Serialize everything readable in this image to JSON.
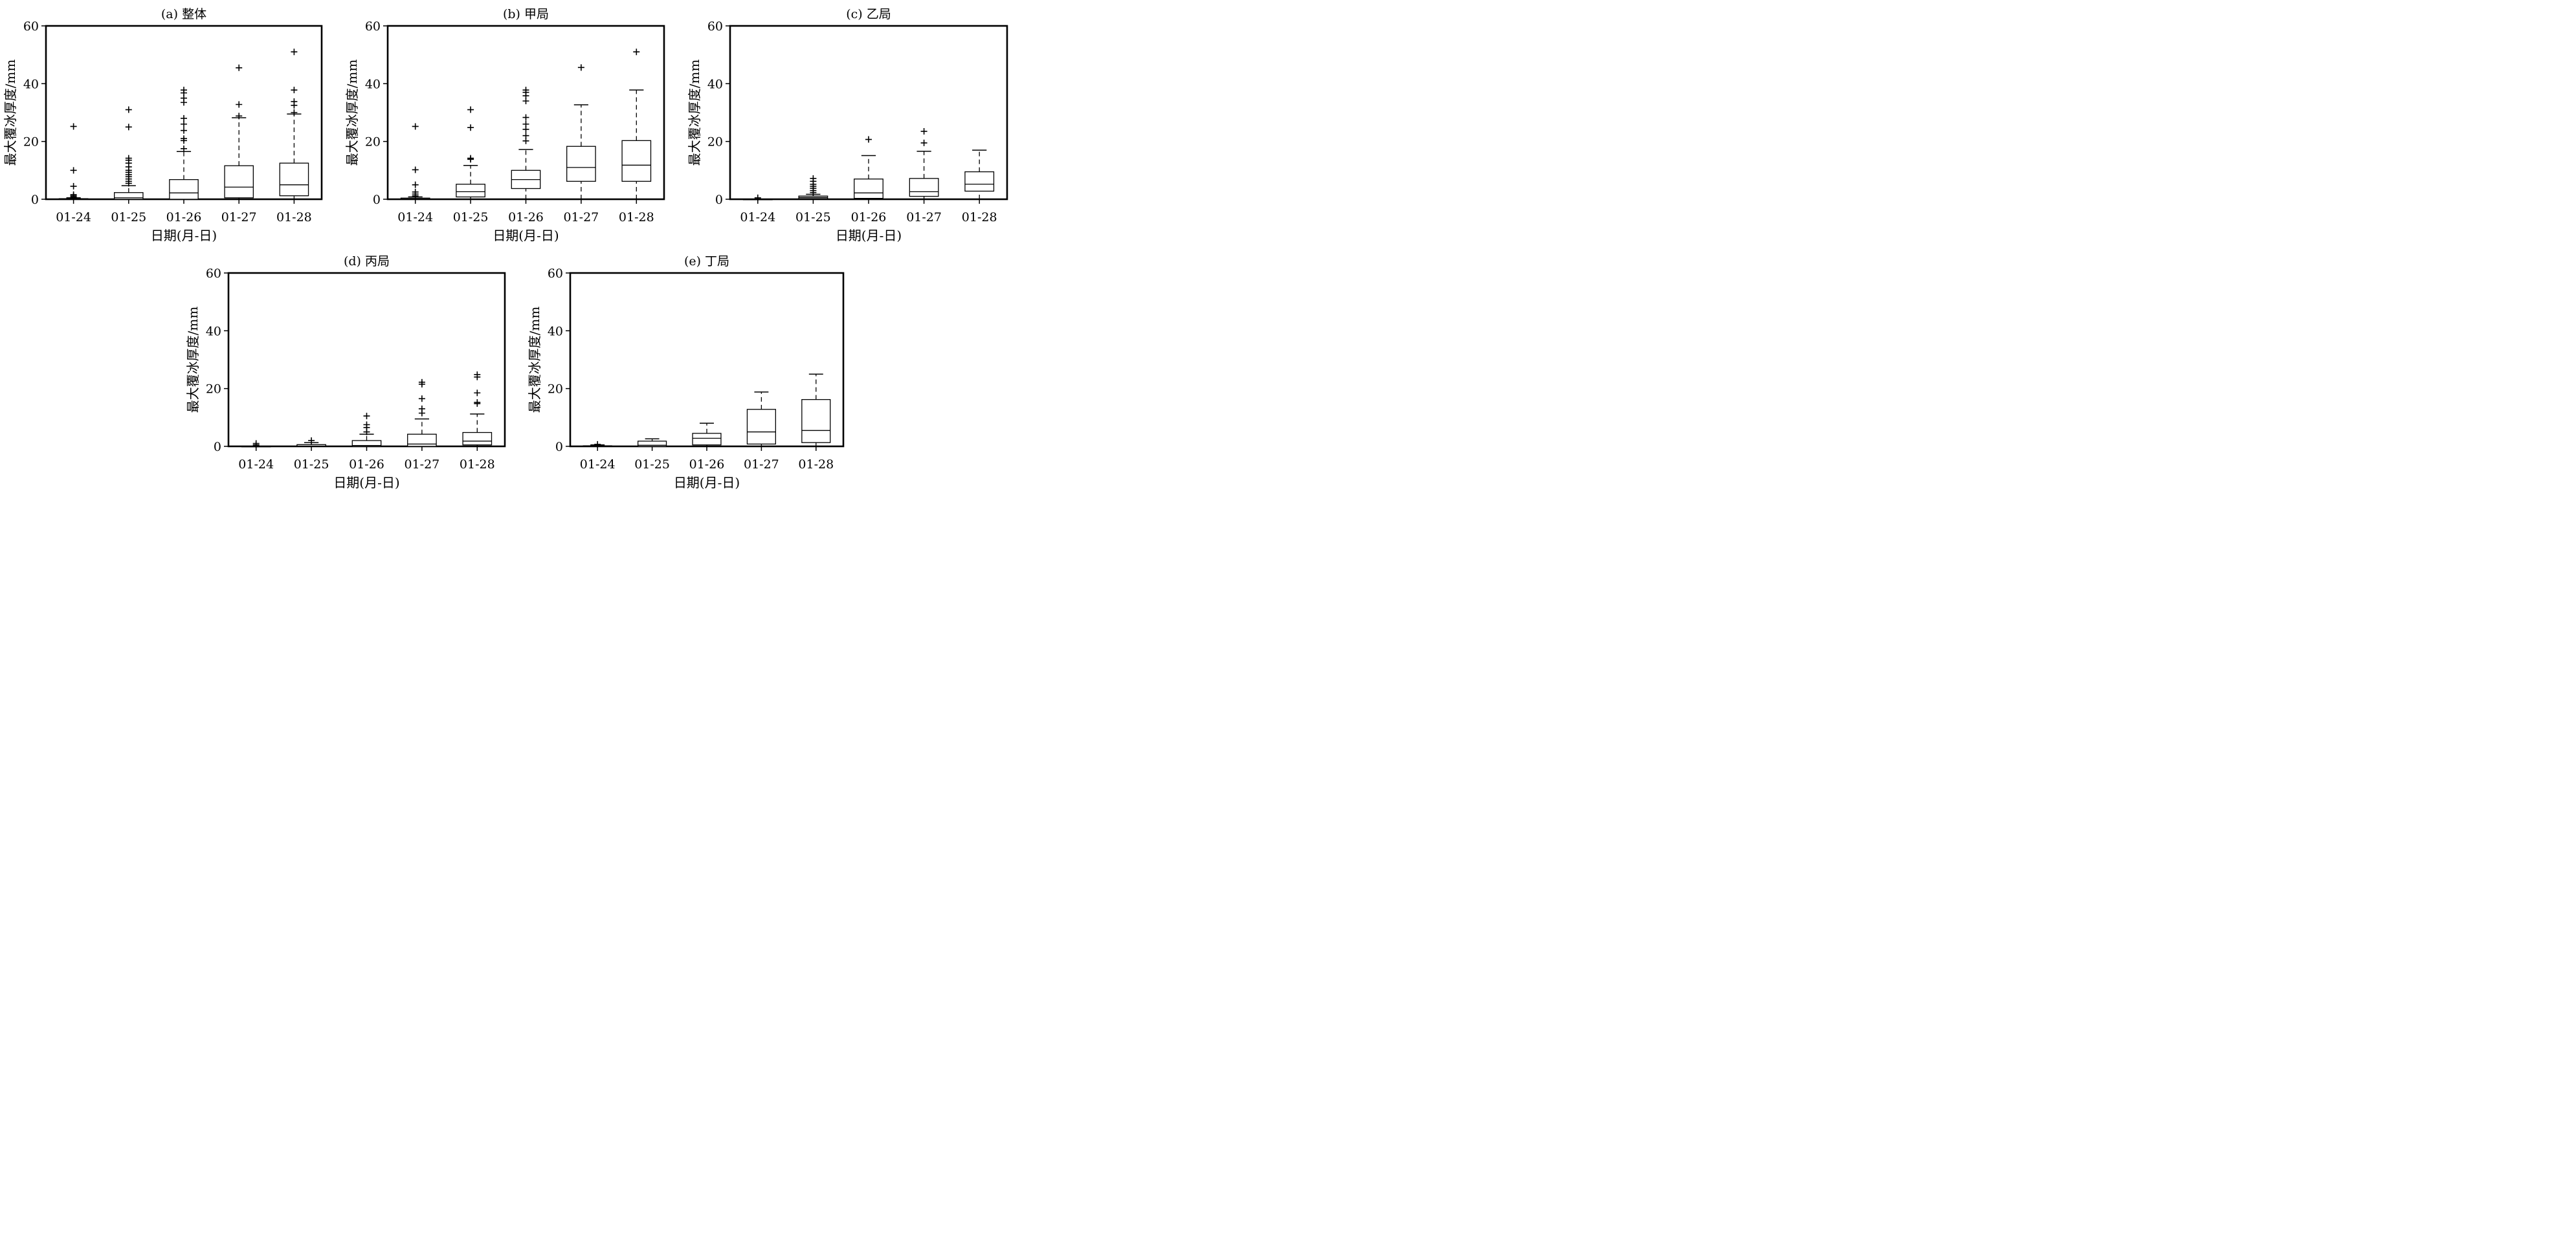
{
  "chart_data": [
    {
      "id": "a",
      "type": "box",
      "title": "(a) 整体",
      "xlabel": "日期(月-日)",
      "ylabel": "最大覆冰厚度/mm",
      "ylim": [
        0,
        60
      ],
      "yticks": [
        0,
        20,
        40,
        60
      ],
      "categories": [
        "01-24",
        "01-25",
        "01-26",
        "01-27",
        "01-28"
      ],
      "boxes": [
        {
          "whisker_low": 0,
          "q1": 0,
          "median": 0,
          "q3": 0.2,
          "whisker_high": 0.5,
          "outliers": [
            0.8,
            1.2,
            1.6,
            4.5,
            10,
            25.2
          ]
        },
        {
          "whisker_low": 0,
          "q1": 0,
          "median": 0.5,
          "q3": 2.3,
          "whisker_high": 4.7,
          "outliers": [
            5.5,
            6.2,
            7,
            7.8,
            8.5,
            9.3,
            10,
            11.2,
            12.5,
            13.5,
            14.2,
            25,
            31
          ]
        },
        {
          "whisker_low": 0,
          "q1": 0,
          "median": 2.2,
          "q3": 6.8,
          "whisker_high": 16.5,
          "outliers": [
            17.5,
            20.3,
            21,
            23.8,
            26,
            28,
            33.5,
            35,
            36.8,
            37.8
          ]
        },
        {
          "whisker_low": 0,
          "q1": 0.5,
          "median": 4.2,
          "q3": 11.6,
          "whisker_high": 28.2,
          "outliers": [
            28.8,
            32.8,
            45.5
          ]
        },
        {
          "whisker_low": 0,
          "q1": 1.2,
          "median": 5,
          "q3": 12.5,
          "whisker_high": 29.5,
          "outliers": [
            30,
            32.5,
            33.8,
            37.8,
            51
          ]
        }
      ]
    },
    {
      "id": "b",
      "type": "box",
      "title": "(b) 甲局",
      "xlabel": "日期(月-日)",
      "ylabel": "最大覆冰厚度/mm",
      "ylim": [
        0,
        60
      ],
      "yticks": [
        0,
        20,
        40,
        60
      ],
      "categories": [
        "01-24",
        "01-25",
        "01-26",
        "01-27",
        "01-28"
      ],
      "boxes": [
        {
          "whisker_low": 0,
          "q1": 0,
          "median": 0.1,
          "q3": 0.4,
          "whisker_high": 0.8,
          "outliers": [
            1.2,
            1.8,
            2.5,
            5,
            10.2,
            25.2
          ]
        },
        {
          "whisker_low": 0,
          "q1": 0.8,
          "median": 2.6,
          "q3": 5.2,
          "whisker_high": 11.7,
          "outliers": [
            13.8,
            14.2,
            24.8,
            31
          ]
        },
        {
          "whisker_low": 0,
          "q1": 3.7,
          "median": 6.8,
          "q3": 10,
          "whisker_high": 17.2,
          "outliers": [
            20.2,
            22,
            24.2,
            26,
            28.3,
            34,
            35.8,
            37,
            37.8
          ]
        },
        {
          "whisker_low": 0,
          "q1": 6.2,
          "median": 11,
          "q3": 18.3,
          "whisker_high": 32.7,
          "outliers": [
            45.6
          ]
        },
        {
          "whisker_low": 0,
          "q1": 6.2,
          "median": 11.8,
          "q3": 20.3,
          "whisker_high": 37.8,
          "outliers": [
            51
          ]
        }
      ]
    },
    {
      "id": "c",
      "type": "box",
      "title": "(c) 乙局",
      "xlabel": "日期(月-日)",
      "ylabel": "最大覆冰厚度/mm",
      "ylim": [
        0,
        60
      ],
      "yticks": [
        0,
        20,
        40,
        60
      ],
      "categories": [
        "01-24",
        "01-25",
        "01-26",
        "01-27",
        "01-28"
      ],
      "boxes": [
        {
          "whisker_low": 0,
          "q1": 0,
          "median": 0,
          "q3": 0,
          "whisker_high": 0,
          "outliers": [
            0.5
          ]
        },
        {
          "whisker_low": 0,
          "q1": 0.2,
          "median": 0.6,
          "q3": 1.1,
          "whisker_high": 1.7,
          "outliers": [
            2.3,
            3,
            3.8,
            4.5,
            5.2,
            6.2,
            7.2
          ]
        },
        {
          "whisker_low": 0,
          "q1": 0.3,
          "median": 2.2,
          "q3": 7,
          "whisker_high": 15.1,
          "outliers": [
            20.7
          ]
        },
        {
          "whisker_low": 0,
          "q1": 1,
          "median": 2.6,
          "q3": 7.2,
          "whisker_high": 16.6,
          "outliers": [
            19.5,
            23.5
          ]
        },
        {
          "whisker_low": 0,
          "q1": 2.8,
          "median": 5.2,
          "q3": 9.5,
          "whisker_high": 17,
          "outliers": []
        }
      ]
    },
    {
      "id": "d",
      "type": "box",
      "title": "(d) 丙局",
      "xlabel": "日期(月-日)",
      "ylabel": "最大覆冰厚度/mm",
      "ylim": [
        0,
        60
      ],
      "yticks": [
        0,
        20,
        40,
        60
      ],
      "categories": [
        "01-24",
        "01-25",
        "01-26",
        "01-27",
        "01-28"
      ],
      "boxes": [
        {
          "whisker_low": 0,
          "q1": 0,
          "median": 0,
          "q3": 0,
          "whisker_high": 0,
          "outliers": [
            0.5,
            1
          ]
        },
        {
          "whisker_low": 0,
          "q1": 0,
          "median": 0.1,
          "q3": 0.6,
          "whisker_high": 1.3,
          "outliers": [
            2
          ]
        },
        {
          "whisker_low": 0,
          "q1": 0,
          "median": 0.3,
          "q3": 2,
          "whisker_high": 4.2,
          "outliers": [
            5,
            6.5,
            7.5,
            10.5
          ]
        },
        {
          "whisker_low": 0,
          "q1": 0,
          "median": 0.8,
          "q3": 4.2,
          "whisker_high": 9.5,
          "outliers": [
            11.5,
            13,
            16.5,
            21.5,
            22.2
          ]
        },
        {
          "whisker_low": 0,
          "q1": 0.5,
          "median": 1.8,
          "q3": 4.8,
          "whisker_high": 11.2,
          "outliers": [
            14.8,
            15.2,
            18.5,
            24,
            24.8
          ]
        }
      ]
    },
    {
      "id": "e",
      "type": "box",
      "title": "(e) 丁局",
      "xlabel": "日期(月-日)",
      "ylabel": "最大覆冰厚度/mm",
      "ylim": [
        0,
        60
      ],
      "yticks": [
        0,
        20,
        40,
        60
      ],
      "categories": [
        "01-24",
        "01-25",
        "01-26",
        "01-27",
        "01-28"
      ],
      "boxes": [
        {
          "whisker_low": 0,
          "q1": 0,
          "median": 0,
          "q3": 0.2,
          "whisker_high": 0.5,
          "outliers": [
            0.7
          ]
        },
        {
          "whisker_low": 0,
          "q1": 0,
          "median": 0.4,
          "q3": 1.8,
          "whisker_high": 2.6,
          "outliers": []
        },
        {
          "whisker_low": 0,
          "q1": 0.5,
          "median": 2.8,
          "q3": 4.5,
          "whisker_high": 8,
          "outliers": []
        },
        {
          "whisker_low": 0,
          "q1": 0.8,
          "median": 5,
          "q3": 12.8,
          "whisker_high": 18.8,
          "outliers": []
        },
        {
          "whisker_low": 0,
          "q1": 1.3,
          "median": 5.5,
          "q3": 16.2,
          "whisker_high": 25,
          "outliers": []
        }
      ]
    }
  ]
}
